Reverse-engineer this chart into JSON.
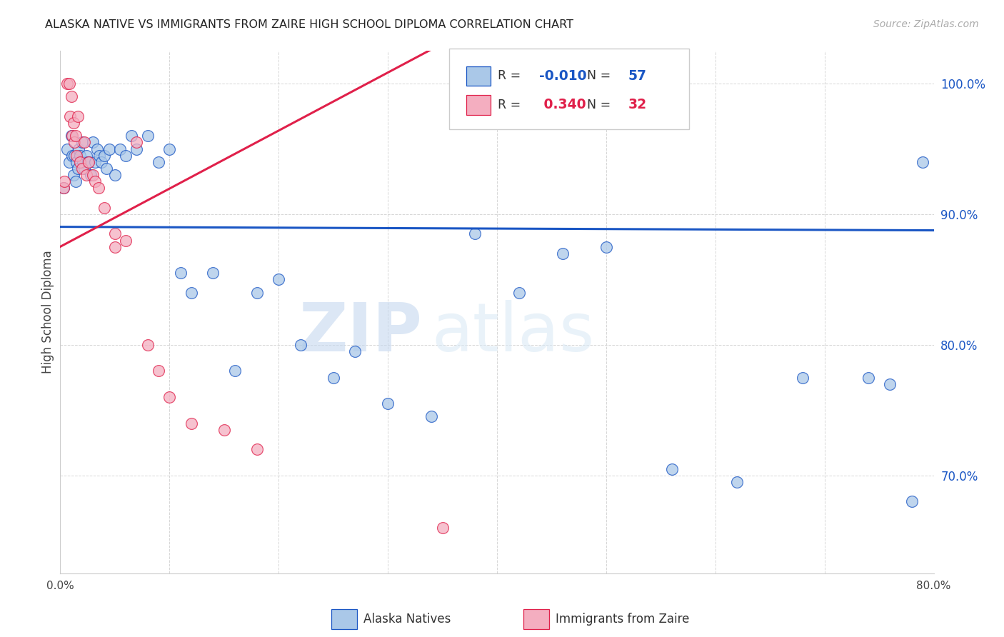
{
  "title": "ALASKA NATIVE VS IMMIGRANTS FROM ZAIRE HIGH SCHOOL DIPLOMA CORRELATION CHART",
  "source": "Source: ZipAtlas.com",
  "ylabel": "High School Diploma",
  "legend_label1": "Alaska Natives",
  "legend_label2": "Immigrants from Zaire",
  "R1": -0.01,
  "N1": 57,
  "R2": 0.34,
  "N2": 32,
  "xmin": 0.0,
  "xmax": 0.8,
  "ymin": 0.625,
  "ymax": 1.025,
  "yticks": [
    0.7,
    0.8,
    0.9,
    1.0
  ],
  "ytick_labels": [
    "70.0%",
    "80.0%",
    "90.0%",
    "100.0%"
  ],
  "xticks": [
    0.0,
    0.1,
    0.2,
    0.3,
    0.4,
    0.5,
    0.6,
    0.7,
    0.8
  ],
  "xtick_labels": [
    "0.0%",
    "",
    "",
    "",
    "",
    "",
    "",
    "",
    "80.0%"
  ],
  "color_blue": "#aac8e8",
  "color_pink": "#f4aec0",
  "line_color_blue": "#1a56c4",
  "line_color_pink": "#e0204a",
  "background_color": "#ffffff",
  "watermark_zip": "ZIP",
  "watermark_atlas": "atlas",
  "blue_x": [
    0.003,
    0.006,
    0.008,
    0.01,
    0.011,
    0.012,
    0.013,
    0.014,
    0.015,
    0.016,
    0.017,
    0.018,
    0.02,
    0.021,
    0.022,
    0.024,
    0.025,
    0.026,
    0.028,
    0.03,
    0.032,
    0.034,
    0.036,
    0.038,
    0.04,
    0.042,
    0.045,
    0.05,
    0.055,
    0.06,
    0.065,
    0.07,
    0.08,
    0.09,
    0.1,
    0.11,
    0.12,
    0.14,
    0.16,
    0.18,
    0.2,
    0.22,
    0.25,
    0.27,
    0.3,
    0.34,
    0.38,
    0.42,
    0.46,
    0.5,
    0.56,
    0.62,
    0.68,
    0.74,
    0.76,
    0.78,
    0.79
  ],
  "blue_y": [
    0.92,
    0.95,
    0.94,
    0.96,
    0.945,
    0.93,
    0.945,
    0.925,
    0.94,
    0.935,
    0.95,
    0.945,
    0.955,
    0.94,
    0.935,
    0.945,
    0.94,
    0.94,
    0.93,
    0.955,
    0.94,
    0.95,
    0.945,
    0.94,
    0.945,
    0.935,
    0.95,
    0.93,
    0.95,
    0.945,
    0.96,
    0.95,
    0.96,
    0.94,
    0.95,
    0.855,
    0.84,
    0.855,
    0.78,
    0.84,
    0.85,
    0.8,
    0.775,
    0.795,
    0.755,
    0.745,
    0.885,
    0.84,
    0.87,
    0.875,
    0.705,
    0.695,
    0.775,
    0.775,
    0.77,
    0.68,
    0.94
  ],
  "pink_x": [
    0.003,
    0.004,
    0.006,
    0.008,
    0.009,
    0.01,
    0.011,
    0.012,
    0.013,
    0.014,
    0.015,
    0.016,
    0.018,
    0.02,
    0.022,
    0.024,
    0.026,
    0.03,
    0.032,
    0.035,
    0.04,
    0.05,
    0.06,
    0.07,
    0.08,
    0.09,
    0.1,
    0.12,
    0.15,
    0.18,
    0.05,
    0.35
  ],
  "pink_y": [
    0.92,
    0.925,
    1.0,
    1.0,
    0.975,
    0.99,
    0.96,
    0.97,
    0.955,
    0.96,
    0.945,
    0.975,
    0.94,
    0.935,
    0.955,
    0.93,
    0.94,
    0.93,
    0.925,
    0.92,
    0.905,
    0.875,
    0.88,
    0.955,
    0.8,
    0.78,
    0.76,
    0.74,
    0.735,
    0.72,
    0.885,
    0.66
  ]
}
